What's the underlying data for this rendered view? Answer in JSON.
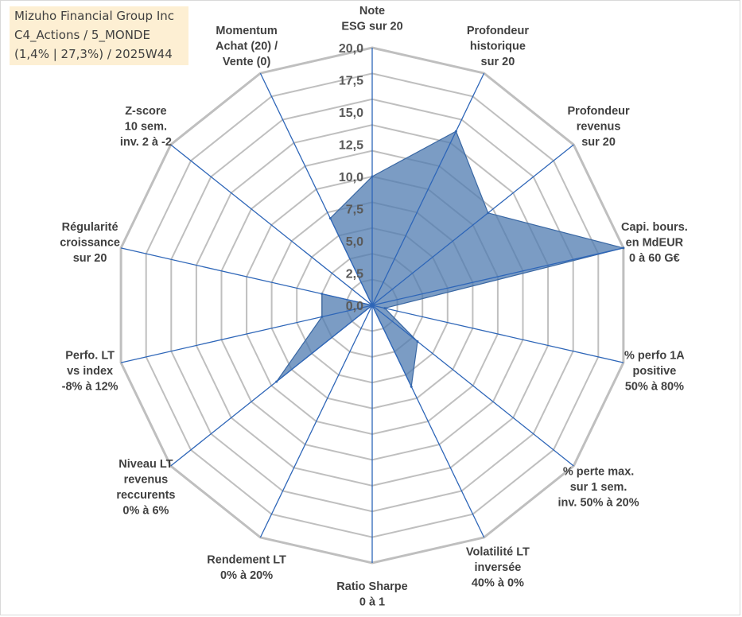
{
  "title_lines": [
    "Mizuho Financial Group Inc",
    "C4_Actions / 5_MONDE",
    "(1,4% | 27,3%) / 2025W44"
  ],
  "chart_data": {
    "type": "radar",
    "range": [
      0,
      20
    ],
    "ticks": [
      "0,0",
      "2,5",
      "5,0",
      "7,5",
      "10,0",
      "12,5",
      "15,0",
      "17,5",
      "20,0"
    ],
    "grid_rings": 10,
    "axes": [
      {
        "label": [
          "Note",
          "ESG sur 20"
        ],
        "value": 10
      },
      {
        "label": [
          "Profondeur",
          "historique",
          "sur 20"
        ],
        "value": 15
      },
      {
        "label": [
          "Profondeur",
          "revenus",
          "sur 20"
        ],
        "value": 11.5
      },
      {
        "label": [
          "Capi. bours.",
          "en MdEUR",
          "0 à 60 G€"
        ],
        "value": 20
      },
      {
        "label": [
          "% perfo 1A",
          "positive",
          "50% à 80%"
        ],
        "value": 1
      },
      {
        "label": [
          "% perte max.",
          "sur 1 sem.",
          "inv. 50% à 20%"
        ],
        "value": 4.5
      },
      {
        "label": [
          "Volatilité LT",
          "inversée",
          "40% à 0%"
        ],
        "value": 7
      },
      {
        "label": [
          "Ratio Sharpe",
          "0 à 1"
        ],
        "value": 0
      },
      {
        "label": [
          "Rendement LT",
          "0% à 20%"
        ],
        "value": 0
      },
      {
        "label": [
          "Niveau LT",
          "revenus",
          "reccurents",
          "0% à 6%"
        ],
        "value": 9.5
      },
      {
        "label": [
          "Perfo. LT",
          "vs index",
          "-8% à 12%"
        ],
        "value": 4
      },
      {
        "label": [
          "Régularité",
          "croissance",
          "sur 20"
        ],
        "value": 4
      },
      {
        "label": [
          "Z-score",
          "10 sem.",
          "inv. 2 à -2"
        ],
        "value": 0
      },
      {
        "label": [
          "Momentum",
          "Achat (20) /",
          "Vente (0)"
        ],
        "value": 7.5
      }
    ],
    "colors": {
      "fill": "#4f7bb0",
      "fill_opacity": "0.75",
      "outline": "#3a68a4",
      "spoke": "#2e66b8",
      "grid": "#bfbfbf"
    }
  }
}
